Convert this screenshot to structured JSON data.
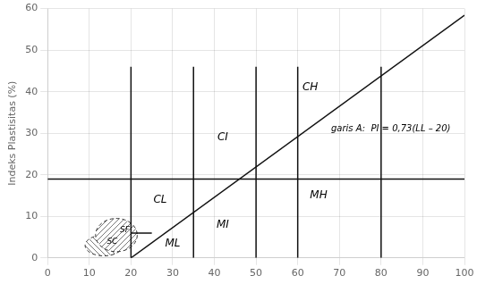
{
  "chart_data": {
    "type": "line",
    "ylabel": "Indeks Plastisitas (%)",
    "color": "#111111",
    "xlim": [
      0,
      100
    ],
    "xticks": [
      0,
      10,
      20,
      30,
      40,
      50,
      60,
      70,
      80,
      90,
      100
    ],
    "ylim": [
      0,
      60
    ],
    "yticks": [
      0,
      10,
      20,
      30,
      40,
      50,
      60
    ],
    "grid": true,
    "series": [
      {
        "x": [
          20,
          20
        ],
        "values": [
          0,
          46
        ]
      },
      {
        "x": [
          35,
          35
        ],
        "values": [
          0,
          46
        ]
      },
      {
        "x": [
          50,
          50
        ],
        "values": [
          0,
          46
        ]
      },
      {
        "x": [
          60,
          60
        ],
        "values": [
          0,
          46
        ]
      },
      {
        "x": [
          80,
          80
        ],
        "values": [
          0,
          46
        ]
      },
      {
        "x": [
          0,
          100
        ],
        "values": [
          19,
          19
        ]
      },
      {
        "x": [
          20,
          25
        ],
        "values": [
          6,
          6
        ]
      },
      {
        "x": [
          20,
          100
        ],
        "values": [
          0,
          58.4
        ]
      }
    ],
    "ellipses": [
      {
        "cx": 13.5,
        "cy": 3.0,
        "width": 9,
        "height": 5,
        "line_style": "dashed"
      },
      {
        "cx": 16.5,
        "cy": 5.5,
        "width": 10,
        "height": 8,
        "line_style": "dashed"
      }
    ],
    "annotations": [
      {
        "text": "garis A:  PI = 0,73(LL – 20)",
        "x": 68,
        "y": 32
      },
      {
        "text": "CH",
        "x": 63,
        "y": 41
      },
      {
        "text": "CI",
        "x": 42,
        "y": 29
      },
      {
        "text": "CL",
        "x": 27,
        "y": 14
      },
      {
        "text": "ML",
        "x": 30,
        "y": 3.5
      },
      {
        "text": "MI",
        "x": 42,
        "y": 8
      },
      {
        "text": "MH",
        "x": 65,
        "y": 15
      },
      {
        "text": "SF",
        "x": 18.5,
        "y": 6.8
      },
      {
        "text": "SC",
        "x": 15.5,
        "y": 4.0
      }
    ]
  }
}
